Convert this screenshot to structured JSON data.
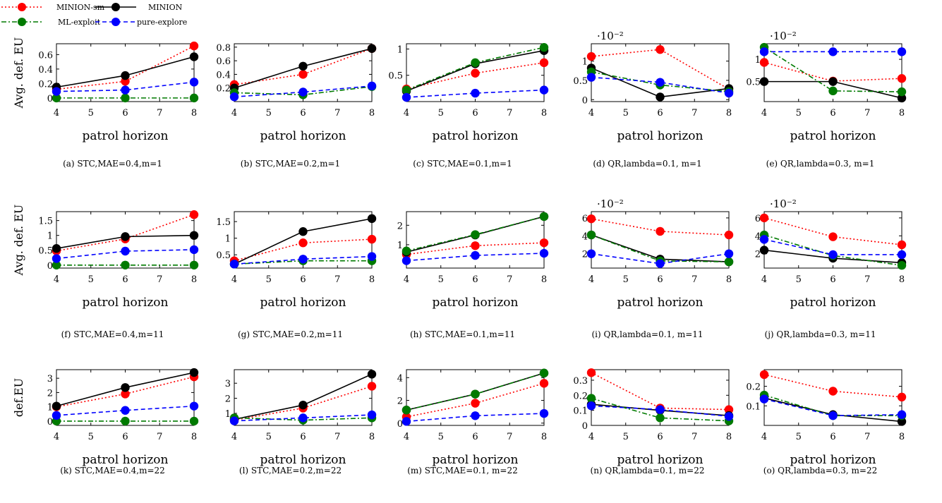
{
  "legend": {
    "placement": "top-left",
    "items": [
      {
        "key": "minion_sm",
        "label": "MINION-sm",
        "color": "#ff0000",
        "dash": "dotted"
      },
      {
        "key": "minion",
        "label": "MINION",
        "color": "#000000",
        "dash": "solid"
      },
      {
        "key": "ml_exploit",
        "label": "ML-exploit",
        "color": "#007a00",
        "dash": "dashdot"
      },
      {
        "key": "pure_explore",
        "label": "pure-explore",
        "color": "#0000ff",
        "dash": "dashed"
      }
    ]
  },
  "chart_data": [
    {
      "type": "line",
      "caption": "(a) STC,MAE=0.4,m=1",
      "xlabel": "patrol horizon",
      "ylabel": "Avg. def. EU",
      "x": [
        4,
        6,
        8
      ],
      "xticks": [
        4,
        5,
        6,
        7,
        8
      ],
      "xlim": [
        4,
        8
      ],
      "ylim": [
        -0.05,
        0.75
      ],
      "yticks": [
        0,
        0.2,
        0.4,
        0.6
      ],
      "ytick_labels": [
        "0",
        "0.2",
        "0.4",
        "0.6"
      ],
      "exponent": "",
      "series": [
        {
          "key": "minion_sm",
          "values": [
            0.12,
            0.23,
            0.72
          ]
        },
        {
          "key": "minion",
          "values": [
            0.15,
            0.31,
            0.57
          ]
        },
        {
          "key": "ml_exploit",
          "values": [
            0,
            0,
            0
          ]
        },
        {
          "key": "pure_explore",
          "values": [
            0.09,
            0.11,
            0.22
          ]
        }
      ]
    },
    {
      "type": "line",
      "caption": "(b) STC,MAE=0.2,m=1",
      "xlabel": "patrol horizon",
      "ylabel": "",
      "x": [
        4,
        6,
        8
      ],
      "xticks": [
        4,
        5,
        6,
        7,
        8
      ],
      "xlim": [
        4,
        8
      ],
      "ylim": [
        0,
        0.85
      ],
      "yticks": [
        0.2,
        0.4,
        0.6,
        0.8
      ],
      "ytick_labels": [
        "0.2",
        "0.4",
        "0.6",
        "0.8"
      ],
      "exponent": "",
      "series": [
        {
          "key": "minion_sm",
          "values": [
            0.25,
            0.4,
            0.78
          ]
        },
        {
          "key": "minion",
          "values": [
            0.2,
            0.52,
            0.78
          ]
        },
        {
          "key": "ml_exploit",
          "values": [
            0.13,
            0.1,
            0.22
          ]
        },
        {
          "key": "pure_explore",
          "values": [
            0.07,
            0.14,
            0.23
          ]
        }
      ]
    },
    {
      "type": "line",
      "caption": "(c) STC,MAE=0.1,m=1",
      "xlabel": "patrol horizon",
      "ylabel": "",
      "x": [
        4,
        6,
        8
      ],
      "xticks": [
        4,
        5,
        6,
        7,
        8
      ],
      "xlim": [
        4,
        8
      ],
      "ylim": [
        0,
        1.1
      ],
      "yticks": [
        0.5,
        1
      ],
      "ytick_labels": [
        "0.5",
        "1"
      ],
      "exponent": "",
      "series": [
        {
          "key": "minion_sm",
          "values": [
            0.24,
            0.54,
            0.74
          ]
        },
        {
          "key": "minion",
          "values": [
            0.2,
            0.72,
            0.97
          ]
        },
        {
          "key": "ml_exploit",
          "values": [
            0.22,
            0.74,
            1.03
          ]
        },
        {
          "key": "pure_explore",
          "values": [
            0.08,
            0.16,
            0.22
          ]
        }
      ]
    },
    {
      "type": "line",
      "caption": "(d) QR,lambda=0.1, m=1",
      "xlabel": "patrol horizon",
      "ylabel": "",
      "x": [
        4,
        6,
        8
      ],
      "xticks": [
        4,
        5,
        6,
        7,
        8
      ],
      "xlim": [
        4,
        8
      ],
      "ylim": [
        -0.05,
        1.45
      ],
      "yticks": [
        0,
        0.5,
        1
      ],
      "ytick_labels": [
        "0",
        "0.5",
        "1"
      ],
      "exponent": "·10⁻²",
      "series": [
        {
          "key": "minion_sm",
          "values": [
            1.12,
            1.3,
            0.27
          ]
        },
        {
          "key": "minion",
          "values": [
            0.82,
            0.07,
            0.29
          ]
        },
        {
          "key": "ml_exploit",
          "values": [
            0.72,
            0.38,
            0.21
          ]
        },
        {
          "key": "pure_explore",
          "values": [
            0.58,
            0.45,
            0.17
          ]
        }
      ]
    },
    {
      "type": "line",
      "caption": "(e) QR,lambda=0.3, m=1",
      "xlabel": "patrol horizon",
      "ylabel": "",
      "x": [
        4,
        6,
        8
      ],
      "xticks": [
        4,
        5,
        6,
        7,
        8
      ],
      "xlim": [
        4,
        8
      ],
      "ylim": [
        0.05,
        1.35
      ],
      "yticks": [
        0.5,
        1
      ],
      "ytick_labels": [
        "0.5",
        "1"
      ],
      "exponent": "·10⁻²",
      "series": [
        {
          "key": "minion_sm",
          "values": [
            0.93,
            0.51,
            0.57
          ]
        },
        {
          "key": "minion",
          "values": [
            0.5,
            0.5,
            0.13
          ]
        },
        {
          "key": "ml_exploit",
          "values": [
            1.27,
            0.29,
            0.27
          ]
        },
        {
          "key": "pure_explore",
          "values": [
            1.17,
            1.17,
            1.17
          ]
        }
      ]
    },
    {
      "type": "line",
      "caption": "(f) STC,MAE=0.4,m=11",
      "xlabel": "patrol horizon",
      "ylabel": "Avg. def. EU",
      "x": [
        4,
        6,
        8
      ],
      "xticks": [
        4,
        5,
        6,
        7,
        8
      ],
      "xlim": [
        4,
        8
      ],
      "ylim": [
        -0.1,
        1.8
      ],
      "yticks": [
        0,
        0.5,
        1,
        1.5
      ],
      "ytick_labels": [
        "0",
        "0.5",
        "1",
        "1.5"
      ],
      "exponent": "",
      "series": [
        {
          "key": "minion_sm",
          "values": [
            0.48,
            0.88,
            1.7
          ]
        },
        {
          "key": "minion",
          "values": [
            0.56,
            0.96,
            1
          ]
        },
        {
          "key": "ml_exploit",
          "values": [
            0,
            0,
            0
          ]
        },
        {
          "key": "pure_explore",
          "values": [
            0.22,
            0.47,
            0.52
          ]
        }
      ]
    },
    {
      "type": "line",
      "caption": "(g) STC,MAE=0.2,m=11",
      "xlabel": "patrol horizon",
      "ylabel": "",
      "x": [
        4,
        6,
        8
      ],
      "xticks": [
        4,
        5,
        6,
        7,
        8
      ],
      "xlim": [
        4,
        8
      ],
      "ylim": [
        0.1,
        1.8
      ],
      "yticks": [
        0.5,
        1,
        1.5
      ],
      "ytick_labels": [
        "0.5",
        "1",
        "1.5"
      ],
      "exponent": "",
      "series": [
        {
          "key": "minion_sm",
          "values": [
            0.32,
            0.86,
            0.97
          ]
        },
        {
          "key": "minion",
          "values": [
            0.22,
            1.2,
            1.59
          ]
        },
        {
          "key": "ml_exploit",
          "values": [
            0.22,
            0.32,
            0.32
          ]
        },
        {
          "key": "pure_explore",
          "values": [
            0.22,
            0.37,
            0.45
          ]
        }
      ]
    },
    {
      "type": "line",
      "caption": "(h) STC,MAE=0.1,m=11",
      "xlabel": "patrol horizon",
      "ylabel": "",
      "x": [
        4,
        6,
        8
      ],
      "xticks": [
        4,
        5,
        6,
        7,
        8
      ],
      "xlim": [
        4,
        8
      ],
      "ylim": [
        -0.2,
        2.7
      ],
      "yticks": [
        1,
        2
      ],
      "ytick_labels": [
        "1",
        "2"
      ],
      "exponent": "",
      "series": [
        {
          "key": "minion_sm",
          "values": [
            0.5,
            0.95,
            1.1
          ]
        },
        {
          "key": "minion",
          "values": [
            0.62,
            1.5,
            2.45
          ]
        },
        {
          "key": "ml_exploit",
          "values": [
            0.68,
            1.52,
            2.45
          ]
        },
        {
          "key": "pure_explore",
          "values": [
            0.18,
            0.45,
            0.56
          ]
        }
      ]
    },
    {
      "type": "line",
      "caption": "(i) QR,lambda=0.1, m=11",
      "xlabel": "patrol horizon",
      "ylabel": "",
      "x": [
        4,
        6,
        8
      ],
      "xticks": [
        4,
        5,
        6,
        7,
        8
      ],
      "xlim": [
        4,
        8
      ],
      "ylim": [
        0.4,
        6.7
      ],
      "yticks": [
        2,
        4,
        6
      ],
      "ytick_labels": [
        "2",
        "4",
        "6"
      ],
      "exponent": "·10⁻²",
      "series": [
        {
          "key": "minion_sm",
          "values": [
            5.9,
            4.5,
            4.1
          ]
        },
        {
          "key": "minion",
          "values": [
            4.1,
            1.4,
            1.1
          ]
        },
        {
          "key": "ml_exploit",
          "values": [
            4.1,
            1.2,
            1.1
          ]
        },
        {
          "key": "pure_explore",
          "values": [
            2.0,
            0.9,
            2.0
          ]
        }
      ]
    },
    {
      "type": "line",
      "caption": "(j) QR,lambda=0.3, m=11",
      "xlabel": "patrol horizon",
      "ylabel": "",
      "x": [
        4,
        6,
        8
      ],
      "xticks": [
        4,
        5,
        6,
        7,
        8
      ],
      "xlim": [
        4,
        8
      ],
      "ylim": [
        0.4,
        6.7
      ],
      "yticks": [
        2,
        4,
        6
      ],
      "ytick_labels": [
        "2",
        "4",
        "6"
      ],
      "exponent": "·10⁻²",
      "series": [
        {
          "key": "minion_sm",
          "values": [
            6.0,
            3.9,
            3.0
          ]
        },
        {
          "key": "minion",
          "values": [
            2.4,
            1.5,
            1.0
          ]
        },
        {
          "key": "ml_exploit",
          "values": [
            4.1,
            1.8,
            0.7
          ]
        },
        {
          "key": "pure_explore",
          "values": [
            3.6,
            1.9,
            1.9
          ]
        }
      ]
    },
    {
      "type": "line",
      "caption": "(k) STC,MAE=0.4,m=22",
      "xlabel": "patrol horizon",
      "ylabel": "def.EU",
      "x": [
        4,
        6,
        8
      ],
      "xticks": [
        4,
        5,
        6,
        7,
        8
      ],
      "xlim": [
        4,
        8
      ],
      "ylim": [
        -0.3,
        3.6
      ],
      "yticks": [
        0,
        1,
        2,
        3
      ],
      "ytick_labels": [
        "0",
        "1",
        "2",
        "3"
      ],
      "exponent": "",
      "series": [
        {
          "key": "minion_sm",
          "values": [
            1.0,
            1.9,
            3.1
          ]
        },
        {
          "key": "minion",
          "values": [
            1.05,
            2.35,
            3.4
          ]
        },
        {
          "key": "ml_exploit",
          "values": [
            0,
            0,
            0
          ]
        },
        {
          "key": "pure_explore",
          "values": [
            0.4,
            0.75,
            1.05
          ]
        }
      ]
    },
    {
      "type": "line",
      "caption": "(l) STC,MAE=0.2,m=22",
      "xlabel": "patrol horizon",
      "ylabel": "",
      "x": [
        4,
        6,
        8
      ],
      "xticks": [
        4,
        5,
        6,
        7,
        8
      ],
      "xlim": [
        4,
        8
      ],
      "ylim": [
        0.2,
        3.9
      ],
      "yticks": [
        1,
        2,
        3
      ],
      "ytick_labels": [
        "1",
        "2",
        "3"
      ],
      "exponent": "",
      "series": [
        {
          "key": "minion_sm",
          "values": [
            0.55,
            1.35,
            2.8
          ]
        },
        {
          "key": "minion",
          "values": [
            0.6,
            1.55,
            3.6
          ]
        },
        {
          "key": "ml_exploit",
          "values": [
            0.7,
            0.55,
            0.7
          ]
        },
        {
          "key": "pure_explore",
          "values": [
            0.5,
            0.7,
            0.9
          ]
        }
      ]
    },
    {
      "type": "line",
      "caption": "(m) STC,MAE=0.1, m=22",
      "xlabel": "patrol horizon",
      "ylabel": "",
      "x": [
        4,
        6,
        8
      ],
      "xticks": [
        4,
        5,
        6,
        7,
        8
      ],
      "xlim": [
        4,
        8
      ],
      "ylim": [
        -0.2,
        4.7
      ],
      "yticks": [
        0,
        2,
        4
      ],
      "ytick_labels": [
        "0",
        "2",
        "4"
      ],
      "exponent": "",
      "series": [
        {
          "key": "minion_sm",
          "values": [
            0.55,
            1.75,
            3.5
          ]
        },
        {
          "key": "minion",
          "values": [
            1.15,
            2.55,
            4.4
          ]
        },
        {
          "key": "ml_exploit",
          "values": [
            1.15,
            2.55,
            4.4
          ]
        },
        {
          "key": "pure_explore",
          "values": [
            0.15,
            0.65,
            0.85
          ]
        }
      ]
    },
    {
      "type": "line",
      "caption": "(n) QR,lambda=0.1, m=22",
      "xlabel": "patrol horizon",
      "ylabel": "",
      "x": [
        4,
        6,
        8
      ],
      "xticks": [
        4,
        5,
        6,
        7,
        8
      ],
      "xlim": [
        4,
        8
      ],
      "ylim": [
        0,
        0.37
      ],
      "yticks": [
        0,
        0.1,
        0.2,
        0.3
      ],
      "ytick_labels": [
        "0",
        "0.1",
        "0.2",
        "0.3"
      ],
      "exponent": "",
      "series": [
        {
          "key": "minion_sm",
          "values": [
            0.35,
            0.115,
            0.105
          ]
        },
        {
          "key": "minion",
          "values": [
            0.14,
            0.1,
            0.065
          ]
        },
        {
          "key": "ml_exploit",
          "values": [
            0.18,
            0.05,
            0.03
          ]
        },
        {
          "key": "pure_explore",
          "values": [
            0.13,
            0.105,
            0.06
          ]
        }
      ]
    },
    {
      "type": "line",
      "caption": "(o) QR,lambda=0.3, m=22",
      "xlabel": "patrol horizon",
      "ylabel": "",
      "x": [
        4,
        6,
        8
      ],
      "xticks": [
        4,
        5,
        6,
        7,
        8
      ],
      "xlim": [
        4,
        8
      ],
      "ylim": [
        0,
        0.285
      ],
      "yticks": [
        0.1,
        0.2
      ],
      "ytick_labels": [
        "0.1",
        "0.2"
      ],
      "exponent": "",
      "series": [
        {
          "key": "minion_sm",
          "values": [
            0.26,
            0.175,
            0.145
          ]
        },
        {
          "key": "minion",
          "values": [
            0.14,
            0.055,
            0.02
          ]
        },
        {
          "key": "ml_exploit",
          "values": [
            0.155,
            0.05,
            0.05
          ]
        },
        {
          "key": "pure_explore",
          "values": [
            0.135,
            0.05,
            0.055
          ]
        }
      ]
    }
  ]
}
